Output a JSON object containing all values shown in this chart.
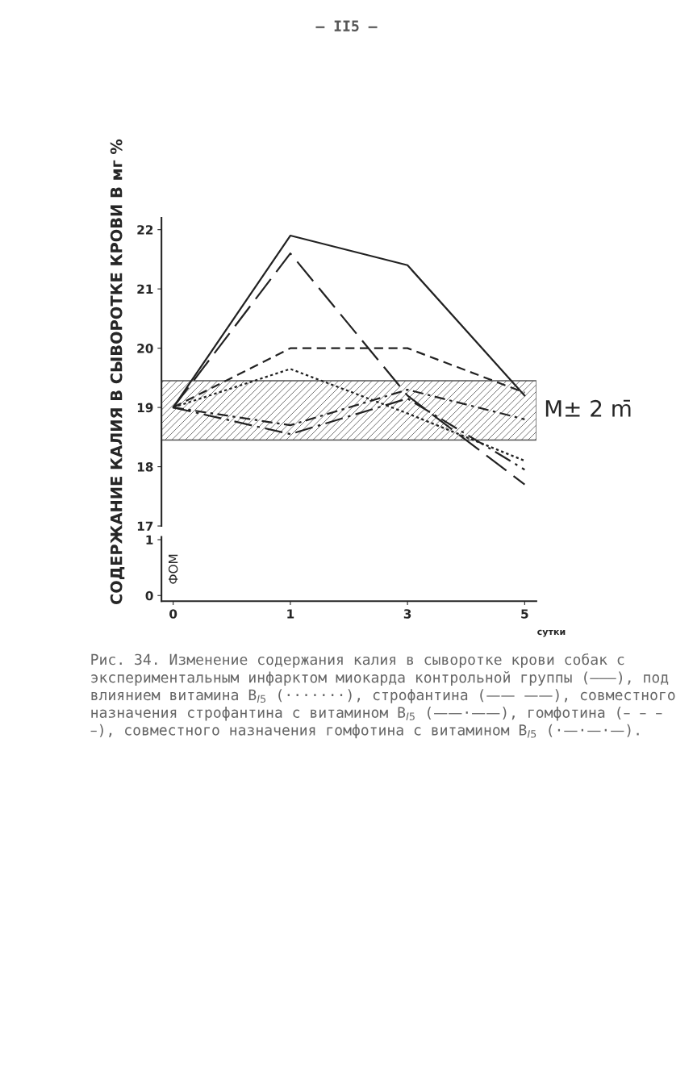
{
  "chart_data": [
    {
      "type": "line",
      "ylabel": "СОДЕРЖАНИЕ КАЛИЯ В СЫВОРОТКЕ КРОВИ В мг %",
      "categories": [
        "0",
        "1",
        "3",
        "5"
      ],
      "ylim": [
        17,
        22.2
      ],
      "yticks": [
        17,
        18,
        19,
        20,
        21,
        22
      ],
      "tick_labels": "y",
      "grid": false,
      "series": [
        {
          "color": "#222222",
          "line_style": "solid",
          "values": [
            19.0,
            21.9,
            21.4,
            19.2
          ]
        },
        {
          "color": "#222222",
          "line_style": "dotted",
          "values": [
            19.0,
            19.65,
            18.9,
            18.1
          ]
        },
        {
          "color": "#222222",
          "line_style": "longdash",
          "values": [
            19.0,
            21.6,
            19.2,
            17.7
          ]
        },
        {
          "color": "#222222",
          "line_style": "dashdot",
          "values": [
            19.0,
            18.55,
            19.15,
            17.95
          ]
        },
        {
          "color": "#222222",
          "line_style": "dashed",
          "values": [
            19.0,
            20.0,
            20.0,
            19.25
          ]
        },
        {
          "color": "#222222",
          "line_style": "dashdotdot",
          "values": [
            19.0,
            18.7,
            19.3,
            18.8
          ]
        }
      ],
      "bands": [
        {
          "axis": "y",
          "from": 18.45,
          "to": 19.45,
          "label": "M± 2 m̄",
          "color": "#555555"
        }
      ],
      "annotations": [
        "– II5 –",
        "Рис. 34. Изменение содержания калия в сыворотке крови собак с экспериментальным инфарктом миокарда контрольной группы (———), под влиянием витамина B$_{I5}$ (·······), строфантина (—— ——), совместного назначения строфантина с витамином B$_{I5}$ (——·——), гомфотина (– – – –), совместного назначения гомфотина с витамином B$_{I5}$ (·—·—·—)."
      ]
    },
    {
      "type": "line",
      "ylabel": "ФОМ",
      "xlabel": "сутки",
      "categories": [
        "0",
        "1",
        "3",
        "5"
      ],
      "ylim": [
        -0.1,
        1.05
      ],
      "yticks": [
        0,
        1
      ],
      "grid": false
    }
  ]
}
